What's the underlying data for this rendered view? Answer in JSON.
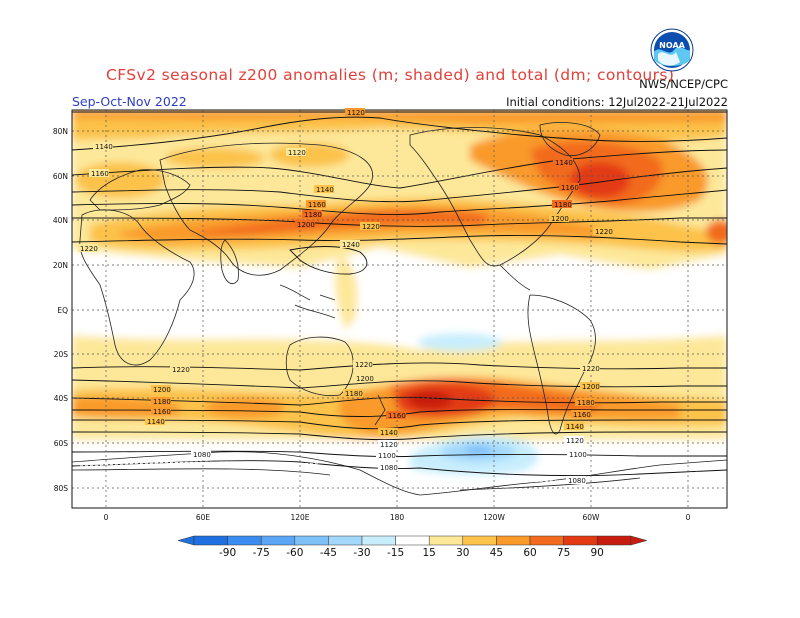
{
  "title": "CFSv2 seasonal z200 anomalies (m; shaded) and total (dm; contours)",
  "season": "Sep-Oct-Nov 2022",
  "initial_conditions": "Initial conditions: 12Jul2022-21Jul2022",
  "agency": "NWS/NCEP/CPC",
  "logo_text": "NOAA",
  "lat_labels": [
    "80N",
    "60N",
    "40N",
    "20N",
    "EQ",
    "20S",
    "40S",
    "60S",
    "80S"
  ],
  "lon_labels": [
    "0",
    "60E",
    "120E",
    "180",
    "120W",
    "60W",
    "0"
  ],
  "contour_labels": [
    "1120",
    "1140",
    "1160",
    "1180",
    "1200",
    "1220",
    "1240",
    "1220",
    "1200",
    "1180",
    "1160",
    "1140",
    "1120",
    "1100",
    "1080"
  ],
  "colorbar": {
    "labels": [
      "-90",
      "-75",
      "-60",
      "-45",
      "-30",
      "-15",
      "15",
      "30",
      "45",
      "60",
      "75",
      "90"
    ],
    "colors": [
      "#1e6fe0",
      "#3a8cf0",
      "#5aa6f5",
      "#7ec0f8",
      "#a3d8fb",
      "#c8eefd",
      "#ffffff",
      "#fde89a",
      "#fcc24a",
      "#f99a2b",
      "#f26a1d",
      "#e33a14",
      "#c81c10"
    ]
  }
}
